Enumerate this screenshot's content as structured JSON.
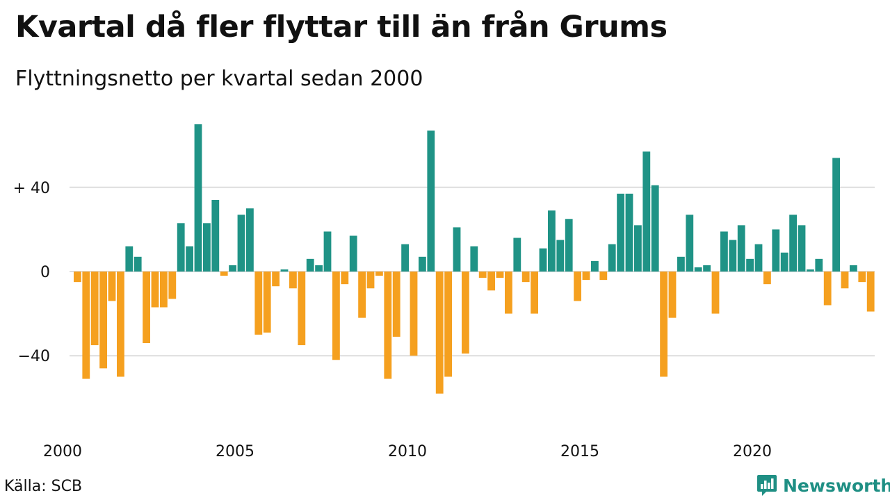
{
  "title": "Kvartal då fler flyttar till än från Grums",
  "subtitle": "Flyttningsnetto per kvartal sedan 2000",
  "source": "Källa: SCB",
  "brand": "Newsworthy",
  "colors": {
    "positive": "#1f9386",
    "negative": "#f5a01f",
    "grid": "#dddddd"
  },
  "chart_data": {
    "type": "bar",
    "title": "Kvartal då fler flyttar till än från Grums",
    "subtitle": "Flyttningsnetto per kvartal sedan 2000",
    "xlabel": "",
    "ylabel": "",
    "x_start": "2000 Q1",
    "x_tick_labels": [
      "2000",
      "2005",
      "2010",
      "2015",
      "2020"
    ],
    "y_ticks": [
      {
        "value": 40,
        "label": "+ 40"
      },
      {
        "value": 0,
        "label": "0"
      },
      {
        "value": -40,
        "label": "−40"
      }
    ],
    "ylim": [
      -62,
      75
    ],
    "grid": true,
    "values": [
      -5,
      -51,
      -35,
      -46,
      -14,
      -50,
      12,
      7,
      -34,
      -17,
      -17,
      -13,
      23,
      12,
      70,
      23,
      34,
      -2,
      3,
      27,
      30,
      -30,
      -29,
      -7,
      1,
      -8,
      -35,
      6,
      3,
      19,
      -42,
      -6,
      17,
      -22,
      -8,
      -2,
      -51,
      -31,
      13,
      -40,
      7,
      67,
      -58,
      -50,
      21,
      -39,
      12,
      -3,
      -9,
      -3,
      -20,
      16,
      -5,
      -20,
      11,
      29,
      15,
      25,
      -14,
      -4,
      5,
      -4,
      13,
      37,
      37,
      22,
      57,
      41,
      -50,
      -22,
      7,
      27,
      2,
      3,
      -20,
      19,
      15,
      22,
      6,
      13,
      -6,
      20,
      9,
      27,
      22,
      1,
      6,
      -16,
      54,
      -8,
      3,
      -5,
      -19
    ]
  }
}
